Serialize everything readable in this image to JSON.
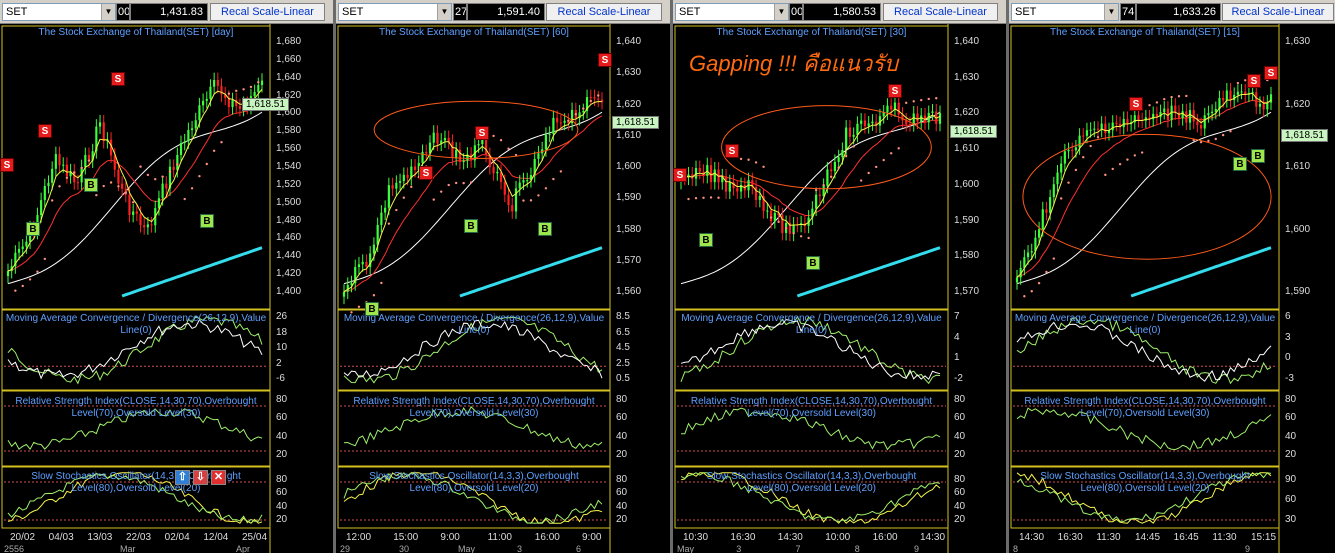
{
  "panels": [
    {
      "symbol": "SET",
      "code": "00",
      "price": "1,431.83",
      "recal": "Recal Scale-Linear",
      "title": "The Stock Exchange of Thailand(SET) [day]",
      "price_ticks": [
        "1,680",
        "1,660",
        "1,640",
        "1,620",
        "1,600",
        "1,580",
        "1,560",
        "1,540",
        "1,520",
        "1,500",
        "1,480",
        "1,460",
        "1,440",
        "1,420",
        "1,400"
      ],
      "last_price": "1,618.51",
      "macd_ticks": [
        "26",
        "18",
        "10",
        "2",
        "-6"
      ],
      "rsi_ticks": [
        "80",
        "60",
        "40",
        "20"
      ],
      "sto_ticks": [
        "80",
        "60",
        "40",
        "20"
      ],
      "dates": [
        "20/02",
        "04/03",
        "13/03",
        "22/03",
        "02/04",
        "12/04",
        "25/04"
      ],
      "bottom_labels": [
        "2556",
        "Mar",
        "Apr"
      ]
    },
    {
      "symbol": "SET",
      "code": "27",
      "price": "1,591.40",
      "recal": "Recal Scale-Linear",
      "title": "The Stock Exchange of Thailand(SET) [60]",
      "price_ticks": [
        "1,640",
        "1,630",
        "1,620",
        "1,610",
        "1,600",
        "1,590",
        "1,580",
        "1,570",
        "1,560"
      ],
      "last_price": "1,618.51",
      "macd_ticks": [
        "8.5",
        "6.5",
        "4.5",
        "2.5",
        "0.5"
      ],
      "rsi_ticks": [
        "80",
        "60",
        "40",
        "20"
      ],
      "sto_ticks": [
        "80",
        "60",
        "40",
        "20"
      ],
      "dates": [
        "12:00",
        "15:00",
        "9:00",
        "11:00",
        "16:00",
        "9:00"
      ],
      "bottom_labels": [
        "29",
        "30",
        "May",
        "3",
        "6"
      ]
    },
    {
      "symbol": "SET",
      "code": "00",
      "price": "1,580.53",
      "recal": "Recal Scale-Linear",
      "title": "The Stock Exchange of Thailand(SET) [30]",
      "price_ticks": [
        "1,640",
        "1,630",
        "1,620",
        "1,610",
        "1,600",
        "1,590",
        "1,580",
        "1,570"
      ],
      "last_price": "1,618.51",
      "macd_ticks": [
        "7",
        "4",
        "1",
        "-2"
      ],
      "rsi_ticks": [
        "80",
        "60",
        "40",
        "20"
      ],
      "sto_ticks": [
        "80",
        "60",
        "40",
        "20"
      ],
      "dates": [
        "10:30",
        "16:30",
        "14:30",
        "10:00",
        "16:00",
        "14:30"
      ],
      "bottom_labels": [
        "May",
        "3",
        "7",
        "8",
        "9"
      ],
      "annotation": "Gapping !!! คือแนวรับ"
    },
    {
      "symbol": "SET",
      "code": "74",
      "price": "1,633.26",
      "recal": "Recal Scale-Linear",
      "title": "The Stock Exchange of Thailand(SET) [15]",
      "price_ticks": [
        "1,630",
        "1,620",
        "1,610",
        "1,600",
        "1,590"
      ],
      "last_price": "1,618.51",
      "macd_ticks": [
        "6",
        "3",
        "0",
        "-3"
      ],
      "rsi_ticks": [
        "80",
        "60",
        "40",
        "20"
      ],
      "sto_ticks": [
        "90",
        "60",
        "30"
      ],
      "dates": [
        "14:30",
        "16:30",
        "11:30",
        "14:45",
        "16:45",
        "11:30",
        "15:15"
      ],
      "bottom_labels": [
        "8",
        "9"
      ]
    }
  ],
  "indicators": {
    "macd": "Moving Average Convergence / Divergence(26,12,9),Value Line(0)",
    "rsi": "Relative Strength Index(CLOSE,14,30,70),Overbought Level(70),Oversold Level(30)",
    "sto": "Slow Stochastics Oscillator(14,3,3),Overbought Level(80),Oversold Level(20)"
  },
  "signals": {
    "sell": "S",
    "buy": "B"
  },
  "tools": {
    "up": "⇧",
    "down": "⇩",
    "close": "✕"
  },
  "colors": {
    "title": "#5ea0ff",
    "up_candle": "#3cff3c",
    "down_candle": "#ff2020",
    "ma_fast": "#f5f54a",
    "ma_mid": "#ff3030",
    "ma_slow": "#ffffff",
    "volume_trend": "#33ddee",
    "sar": "#ff9080",
    "gap_ellipse": "#ff5a1a",
    "price_tag_bg": "#c8f5c0"
  }
}
